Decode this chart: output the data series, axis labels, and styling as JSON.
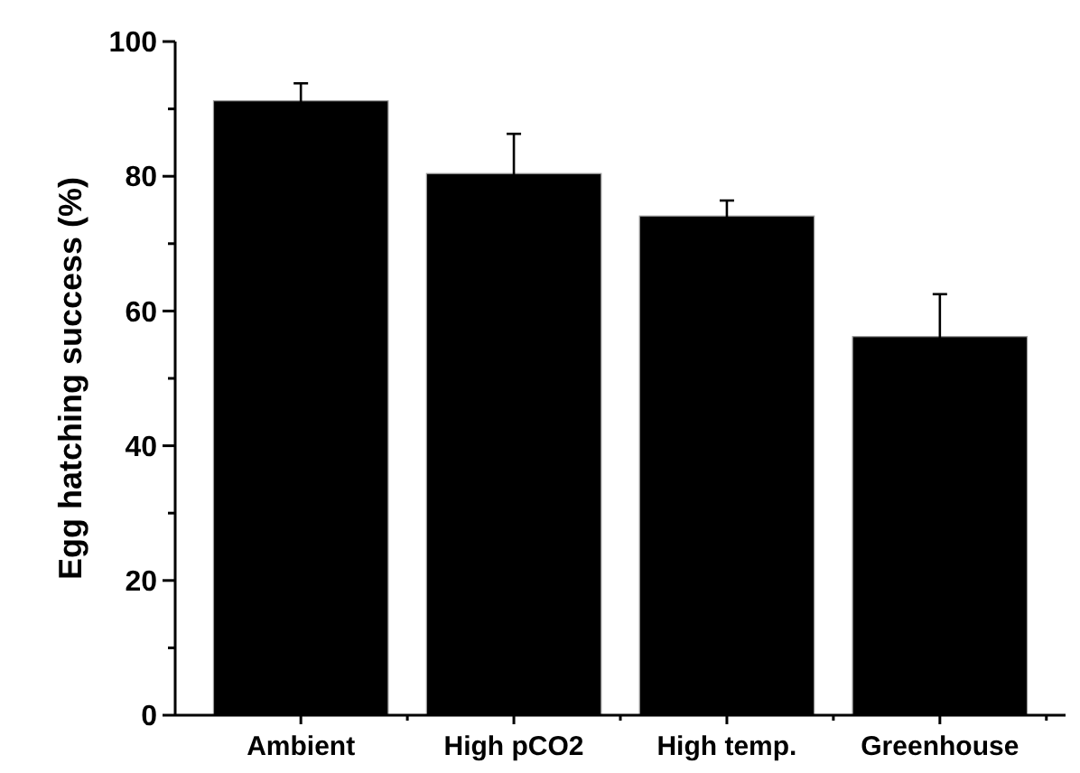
{
  "chart_data": {
    "type": "bar",
    "ylabel": "Egg hatching success (%)",
    "categories": [
      "Ambient",
      "High pCO2",
      "High temp.",
      "Greenhouse"
    ],
    "values": [
      91.2,
      80.4,
      74.1,
      56.2
    ],
    "errors": [
      2.6,
      5.9,
      2.3,
      6.3
    ],
    "color": "#000000",
    "ylim": [
      0,
      100
    ],
    "yticks": [
      0,
      {
        "value": 10,
        "label": null
      },
      20,
      {
        "value": 30,
        "label": null
      },
      40,
      {
        "value": 50,
        "label": null
      },
      60,
      {
        "value": 70,
        "label": null
      },
      80,
      {
        "value": 90,
        "label": null
      },
      100
    ],
    "grid": false
  }
}
